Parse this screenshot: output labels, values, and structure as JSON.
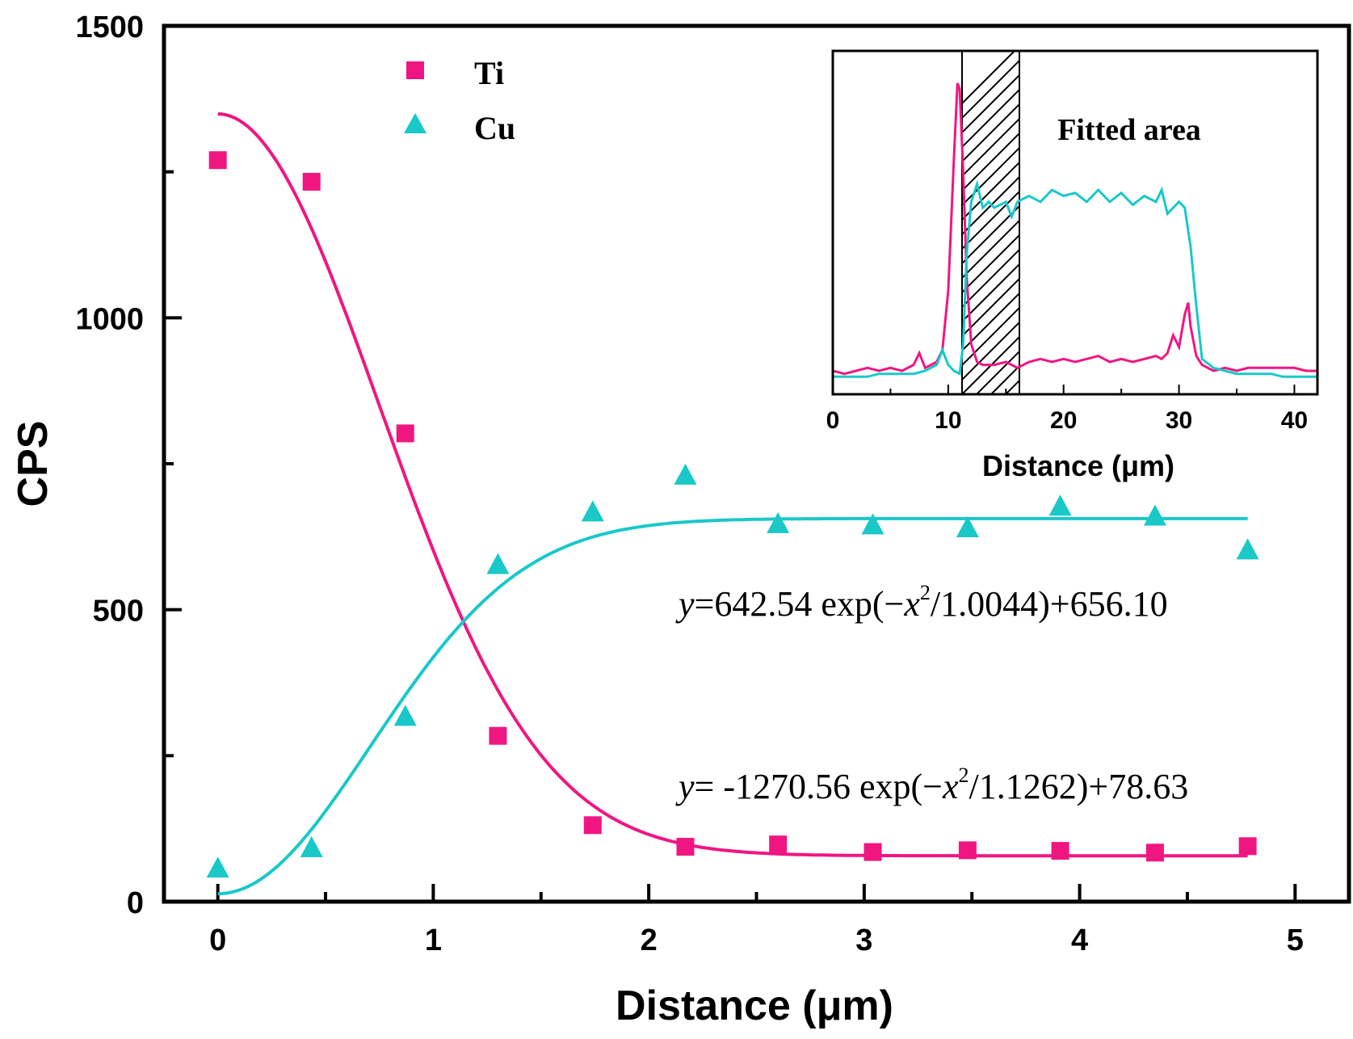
{
  "colors": {
    "ti": "#f01682",
    "cu": "#1ac8c8",
    "axis": "#000000"
  },
  "chart_data": [
    {
      "type": "scatter",
      "xlabel": "Distance (μm)",
      "ylabel": "CPS",
      "xlim": [
        -0.25,
        5.25
      ],
      "ylim": [
        0,
        1500
      ],
      "xticks": [
        "0",
        "1",
        "2",
        "3",
        "4",
        "5"
      ],
      "xtick_values": [
        0,
        1,
        2,
        3,
        4,
        5
      ],
      "yticks": [
        "0",
        "500",
        "1000",
        "1500"
      ],
      "ytick_values": [
        0,
        500,
        1000,
        1500
      ],
      "legend": {
        "position": "top-left",
        "entries": [
          "Ti",
          "Cu"
        ]
      },
      "series": [
        {
          "name": "Ti",
          "marker": "square",
          "x": [
            0,
            0.435,
            0.87,
            1.3,
            1.74,
            2.17,
            2.6,
            3.04,
            3.48,
            3.91,
            4.35,
            4.78
          ],
          "y": [
            1270,
            1233,
            802,
            284,
            131,
            94,
            98,
            85,
            88,
            87,
            84,
            95
          ]
        },
        {
          "name": "Cu",
          "marker": "triangle",
          "x": [
            0,
            0.435,
            0.87,
            1.3,
            1.74,
            2.17,
            2.6,
            3.04,
            3.48,
            3.91,
            4.35,
            4.78
          ],
          "y": [
            55,
            90,
            315,
            575,
            665,
            728,
            645,
            643,
            638,
            675,
            658,
            600
          ]
        }
      ],
      "fits": [
        {
          "series": "Ti",
          "amplitude": 1270.56,
          "width": 1.1262,
          "offset": 78.63,
          "sign": 1
        },
        {
          "series": "Cu",
          "amplitude": 642.54,
          "width": 1.0044,
          "offset": 656.1,
          "sign": -1
        }
      ],
      "annotations": {
        "cu_eq": {
          "y": "y",
          "pre": "=642.54 exp(−",
          "x": "x",
          "sup": "2",
          "post": "/1.0044)+656.10"
        },
        "ti_eq": {
          "y": "y",
          "pre": "= -1270.56 exp(−",
          "x": "x",
          "sup": "2",
          "post": "/1.1262)+78.63"
        }
      }
    },
    {
      "type": "line",
      "xlabel": "Distance (μm)",
      "ylabel": "",
      "xlim": [
        0,
        42
      ],
      "ylim": [
        0,
        1
      ],
      "xticks": [
        "0",
        "10",
        "20",
        "30",
        "40"
      ],
      "xtick_values": [
        0,
        10,
        20,
        30,
        40
      ],
      "annotation": "Fitted area",
      "fitted_area_x": [
        11,
        16
      ],
      "series": [
        {
          "name": "Ti",
          "x": [
            0,
            1,
            2,
            3,
            4,
            5,
            6,
            7,
            7.5,
            8,
            9,
            9.5,
            10,
            10.5,
            10.8,
            11,
            11.3,
            11.6,
            12,
            12.5,
            13,
            14,
            15,
            16,
            17,
            18,
            19,
            20,
            21,
            22,
            23,
            24,
            25,
            26,
            27,
            28,
            28.5,
            29,
            29.5,
            30,
            30.5,
            30.8,
            31,
            31.5,
            32,
            33,
            34,
            35,
            36,
            37,
            38,
            39,
            40,
            41,
            42
          ],
          "y": [
            0.03,
            0.02,
            0.03,
            0.04,
            0.03,
            0.04,
            0.03,
            0.05,
            0.09,
            0.04,
            0.06,
            0.1,
            0.3,
            0.75,
            1.0,
            0.98,
            0.7,
            0.35,
            0.12,
            0.06,
            0.05,
            0.05,
            0.06,
            0.04,
            0.06,
            0.07,
            0.06,
            0.07,
            0.06,
            0.07,
            0.08,
            0.06,
            0.07,
            0.06,
            0.07,
            0.08,
            0.07,
            0.09,
            0.15,
            0.11,
            0.22,
            0.26,
            0.18,
            0.08,
            0.05,
            0.03,
            0.04,
            0.03,
            0.04,
            0.04,
            0.04,
            0.04,
            0.04,
            0.03,
            0.03
          ]
        },
        {
          "name": "Cu",
          "x": [
            0,
            1,
            2,
            3,
            4,
            5,
            6,
            7,
            8,
            9,
            9.5,
            10,
            10.5,
            11,
            11.3,
            11.6,
            12,
            12.5,
            13,
            13.5,
            14,
            15,
            15.5,
            16,
            17,
            18,
            19,
            20,
            21,
            22,
            23,
            24,
            25,
            26,
            27,
            28,
            28.5,
            29,
            30,
            30.5,
            31,
            31.5,
            32,
            33,
            34,
            35,
            36,
            37,
            38,
            39,
            40,
            41,
            42
          ],
          "y": [
            0.01,
            0.01,
            0.01,
            0.01,
            0.02,
            0.02,
            0.02,
            0.02,
            0.03,
            0.05,
            0.1,
            0.05,
            0.03,
            0.02,
            0.12,
            0.42,
            0.6,
            0.66,
            0.58,
            0.6,
            0.58,
            0.6,
            0.55,
            0.6,
            0.62,
            0.6,
            0.64,
            0.62,
            0.63,
            0.6,
            0.64,
            0.6,
            0.63,
            0.59,
            0.62,
            0.6,
            0.64,
            0.56,
            0.6,
            0.58,
            0.45,
            0.25,
            0.07,
            0.04,
            0.03,
            0.02,
            0.02,
            0.02,
            0.02,
            0.01,
            0.01,
            0.01,
            0.01
          ]
        }
      ]
    }
  ]
}
